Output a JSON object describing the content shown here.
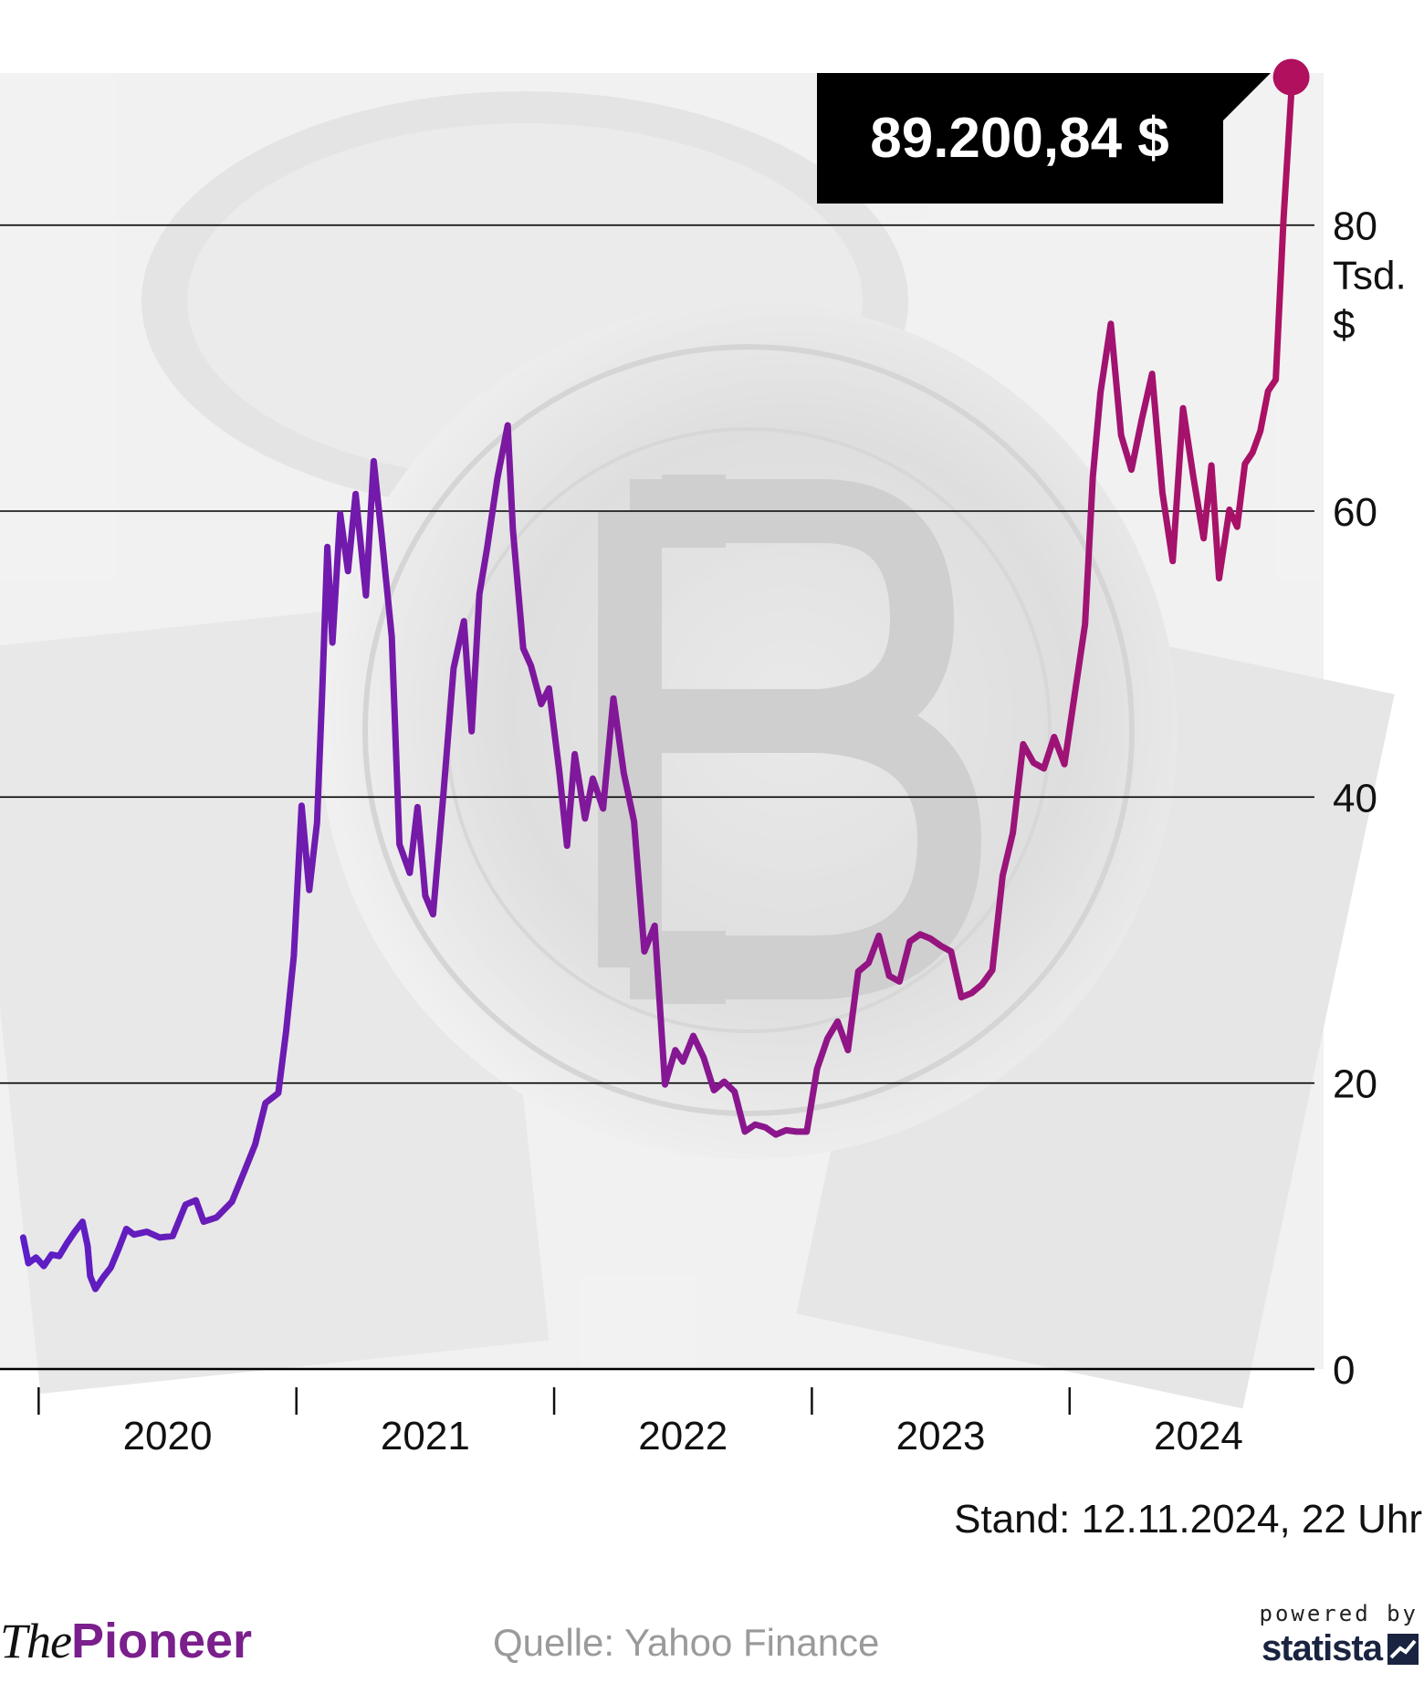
{
  "chart_data": {
    "type": "line",
    "title": "",
    "xlabel": "",
    "ylabel": "Tsd. $",
    "y_unit_label": [
      "Tsd.",
      "$"
    ],
    "ylim": [
      0,
      90
    ],
    "y_ticks": [
      0,
      20,
      40,
      60,
      80
    ],
    "x_tick_labels": [
      "2020",
      "2021",
      "2022",
      "2023",
      "2024"
    ],
    "xlim": [
      2019.85,
      2024.95
    ],
    "grid": true,
    "colors": {
      "line_start": "#5b1ec8",
      "line_end": "#b0105e",
      "label_bg": "#000000",
      "label_text": "#ffffff",
      "gridline": "#000000"
    },
    "callout": "89.200,84 $",
    "series": [
      {
        "name": "",
        "points": [
          [
            2019.94,
            9.2
          ],
          [
            2019.96,
            7.4
          ],
          [
            2019.99,
            7.8
          ],
          [
            2020.02,
            7.2
          ],
          [
            2020.05,
            8.0
          ],
          [
            2020.08,
            7.9
          ],
          [
            2020.11,
            8.8
          ],
          [
            2020.14,
            9.6
          ],
          [
            2020.17,
            10.3
          ],
          [
            2020.19,
            8.6
          ],
          [
            2020.2,
            6.5
          ],
          [
            2020.22,
            5.6
          ],
          [
            2020.25,
            6.4
          ],
          [
            2020.28,
            7.1
          ],
          [
            2020.31,
            8.4
          ],
          [
            2020.34,
            9.8
          ],
          [
            2020.37,
            9.4
          ],
          [
            2020.42,
            9.6
          ],
          [
            2020.47,
            9.2
          ],
          [
            2020.52,
            9.3
          ],
          [
            2020.57,
            11.5
          ],
          [
            2020.61,
            11.8
          ],
          [
            2020.64,
            10.3
          ],
          [
            2020.69,
            10.6
          ],
          [
            2020.75,
            11.7
          ],
          [
            2020.8,
            13.9
          ],
          [
            2020.84,
            15.7
          ],
          [
            2020.88,
            18.6
          ],
          [
            2020.93,
            19.3
          ],
          [
            2020.96,
            23.6
          ],
          [
            2020.99,
            28.9
          ],
          [
            2021.02,
            39.4
          ],
          [
            2021.05,
            33.5
          ],
          [
            2021.08,
            38.2
          ],
          [
            2021.1,
            47.2
          ],
          [
            2021.12,
            57.5
          ],
          [
            2021.14,
            50.8
          ],
          [
            2021.17,
            59.8
          ],
          [
            2021.2,
            55.8
          ],
          [
            2021.23,
            61.2
          ],
          [
            2021.27,
            54.1
          ],
          [
            2021.3,
            63.5
          ],
          [
            2021.33,
            58.4
          ],
          [
            2021.37,
            51.2
          ],
          [
            2021.4,
            36.7
          ],
          [
            2021.44,
            34.7
          ],
          [
            2021.47,
            39.3
          ],
          [
            2021.5,
            33.1
          ],
          [
            2021.53,
            31.8
          ],
          [
            2021.57,
            40.1
          ],
          [
            2021.61,
            49.0
          ],
          [
            2021.65,
            52.3
          ],
          [
            2021.68,
            44.6
          ],
          [
            2021.71,
            54.2
          ],
          [
            2021.74,
            57.4
          ],
          [
            2021.78,
            62.3
          ],
          [
            2021.82,
            66.0
          ],
          [
            2021.84,
            58.7
          ],
          [
            2021.88,
            50.4
          ],
          [
            2021.91,
            49.2
          ],
          [
            2021.95,
            46.5
          ],
          [
            2021.98,
            47.6
          ],
          [
            2022.02,
            41.8
          ],
          [
            2022.05,
            36.6
          ],
          [
            2022.08,
            43.0
          ],
          [
            2022.12,
            38.5
          ],
          [
            2022.15,
            41.3
          ],
          [
            2022.19,
            39.2
          ],
          [
            2022.23,
            46.9
          ],
          [
            2022.27,
            41.7
          ],
          [
            2022.31,
            38.3
          ],
          [
            2022.35,
            29.2
          ],
          [
            2022.39,
            31.0
          ],
          [
            2022.43,
            19.9
          ],
          [
            2022.47,
            22.3
          ],
          [
            2022.5,
            21.5
          ],
          [
            2022.54,
            23.3
          ],
          [
            2022.58,
            21.8
          ],
          [
            2022.62,
            19.5
          ],
          [
            2022.66,
            20.1
          ],
          [
            2022.7,
            19.4
          ],
          [
            2022.74,
            16.6
          ],
          [
            2022.78,
            17.1
          ],
          [
            2022.82,
            16.9
          ],
          [
            2022.86,
            16.4
          ],
          [
            2022.9,
            16.7
          ],
          [
            2022.94,
            16.6
          ],
          [
            2022.98,
            16.6
          ],
          [
            2023.02,
            21.0
          ],
          [
            2023.06,
            23.1
          ],
          [
            2023.1,
            24.3
          ],
          [
            2023.14,
            22.3
          ],
          [
            2023.18,
            27.8
          ],
          [
            2023.22,
            28.4
          ],
          [
            2023.26,
            30.3
          ],
          [
            2023.3,
            27.5
          ],
          [
            2023.34,
            27.1
          ],
          [
            2023.38,
            29.9
          ],
          [
            2023.42,
            30.4
          ],
          [
            2023.46,
            30.1
          ],
          [
            2023.5,
            29.6
          ],
          [
            2023.54,
            29.2
          ],
          [
            2023.58,
            26.0
          ],
          [
            2023.62,
            26.3
          ],
          [
            2023.66,
            26.9
          ],
          [
            2023.7,
            27.9
          ],
          [
            2023.74,
            34.5
          ],
          [
            2023.78,
            37.5
          ],
          [
            2023.82,
            43.7
          ],
          [
            2023.86,
            42.4
          ],
          [
            2023.9,
            42.0
          ],
          [
            2023.94,
            44.2
          ],
          [
            2023.98,
            42.3
          ],
          [
            2024.02,
            47.2
          ],
          [
            2024.06,
            52.1
          ],
          [
            2024.09,
            62.4
          ],
          [
            2024.12,
            68.3
          ],
          [
            2024.16,
            73.1
          ],
          [
            2024.2,
            65.3
          ],
          [
            2024.24,
            62.9
          ],
          [
            2024.28,
            66.4
          ],
          [
            2024.32,
            69.6
          ],
          [
            2024.36,
            61.3
          ],
          [
            2024.4,
            56.5
          ],
          [
            2024.44,
            67.2
          ],
          [
            2024.48,
            62.4
          ],
          [
            2024.52,
            58.1
          ],
          [
            2024.55,
            63.2
          ],
          [
            2024.58,
            55.3
          ],
          [
            2024.62,
            60.1
          ],
          [
            2024.65,
            58.9
          ],
          [
            2024.68,
            63.3
          ],
          [
            2024.71,
            64.1
          ],
          [
            2024.74,
            65.6
          ],
          [
            2024.77,
            68.4
          ],
          [
            2024.8,
            69.2
          ],
          [
            2024.83,
            80.4
          ],
          [
            2024.86,
            89.2
          ]
        ]
      }
    ]
  },
  "footer": {
    "stand": "Stand: 12.11.2024, 22 Uhr",
    "brand_the": "The",
    "brand_pioneer": "Pioneer",
    "source": "Quelle: Yahoo Finance",
    "powered_by": "powered by",
    "statista": "statista"
  }
}
